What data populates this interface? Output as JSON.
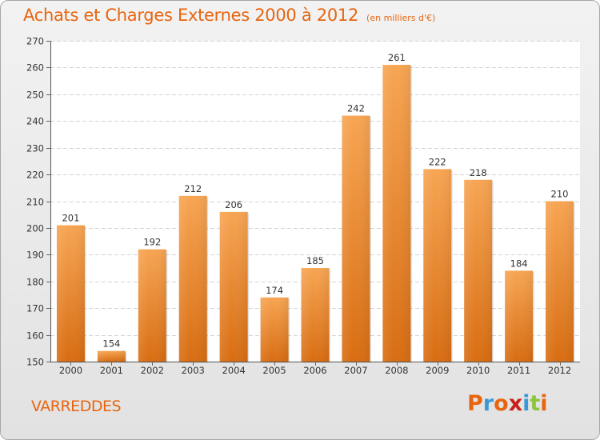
{
  "header": {
    "title": "Achats et Charges Externes 2000 à 2012",
    "unit": "(en milliers d'€)"
  },
  "footer": {
    "town": "VARREDDES",
    "logo_letters": [
      "P",
      "r",
      "o",
      "x",
      "i",
      "t",
      "i"
    ],
    "logo_colors": [
      "#e8650f",
      "#3a9ad9",
      "#e8650f",
      "#c8201a",
      "#3a9ad9",
      "#8cc43c",
      "#e8650f"
    ]
  },
  "chart_data": {
    "type": "bar",
    "categories": [
      "2000",
      "2001",
      "2002",
      "2003",
      "2004",
      "2005",
      "2006",
      "2007",
      "2008",
      "2009",
      "2010",
      "2011",
      "2012"
    ],
    "values": [
      201,
      154,
      192,
      212,
      206,
      174,
      185,
      242,
      261,
      222,
      218,
      184,
      210
    ],
    "title": "Achats et Charges Externes 2000 à 2012",
    "subtitle": "(en milliers d'€)",
    "xlabel": "",
    "ylabel": "",
    "ylim": [
      150,
      270
    ],
    "yticks": [
      150,
      160,
      170,
      180,
      190,
      200,
      210,
      220,
      230,
      240,
      250,
      260,
      270
    ],
    "grid": true,
    "bar_color_top": "#f7a553",
    "bar_color_bottom": "#d86d12"
  }
}
